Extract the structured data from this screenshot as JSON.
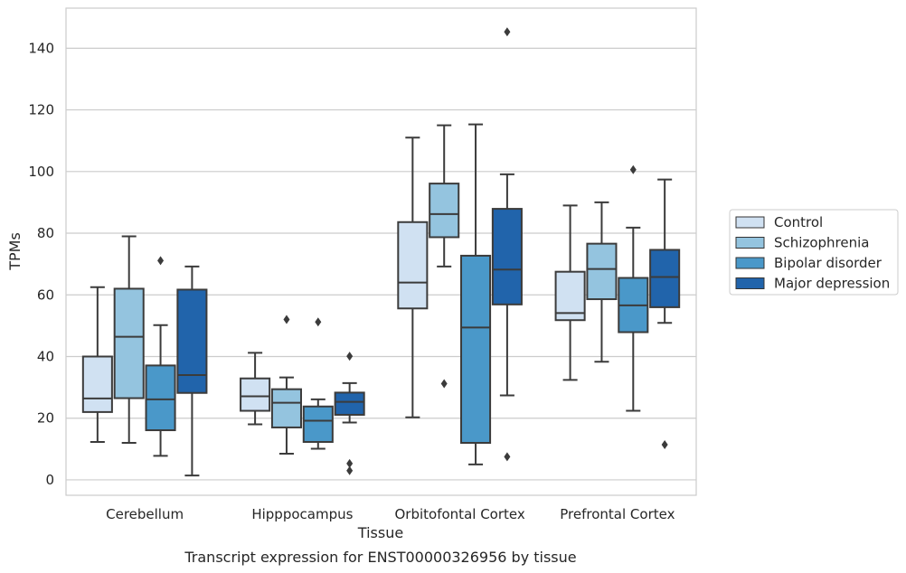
{
  "chart_data": {
    "type": "box",
    "title": "",
    "caption": "Transcript expression for ENST00000326956 by tissue",
    "xlabel": "Tissue",
    "ylabel": "TPMs",
    "ylim": [
      -5,
      153
    ],
    "yticks": [
      0,
      20,
      40,
      60,
      80,
      100,
      120,
      140
    ],
    "grid": true,
    "legend_position": "right",
    "categories": [
      "Cerebellum",
      "Hipppocampus",
      "Orbitofontal Cortex",
      "Prefrontal Cortex"
    ],
    "series": [
      {
        "name": "Control",
        "color": "#d0e1f2",
        "boxes": [
          {
            "low": 12.3,
            "q1": 22,
            "median": 26.4,
            "q3": 40,
            "high": 62.5,
            "outliers": []
          },
          {
            "low": 18,
            "q1": 22.4,
            "median": 27.1,
            "q3": 32.9,
            "high": 41.2,
            "outliers": []
          },
          {
            "low": 20.3,
            "q1": 55.6,
            "median": 64,
            "q3": 83.6,
            "high": 111,
            "outliers": []
          },
          {
            "low": 32.4,
            "q1": 51.8,
            "median": 54.1,
            "q3": 67.5,
            "high": 89,
            "outliers": []
          }
        ]
      },
      {
        "name": "Schizophrenia",
        "color": "#94c4df",
        "boxes": [
          {
            "low": 12,
            "q1": 26.5,
            "median": 46.4,
            "q3": 62,
            "high": 79,
            "outliers": []
          },
          {
            "low": 8.5,
            "q1": 17,
            "median": 25,
            "q3": 29.4,
            "high": 33.2,
            "outliers": [
              52
            ]
          },
          {
            "low": 69.2,
            "q1": 78.7,
            "median": 86.2,
            "q3": 96.1,
            "high": 115,
            "outliers": [
              31.2
            ]
          },
          {
            "low": 38.3,
            "q1": 58.6,
            "median": 68.4,
            "q3": 76.6,
            "high": 90,
            "outliers": []
          }
        ]
      },
      {
        "name": "Bipolar disorder",
        "color": "#4a98c9",
        "boxes": [
          {
            "low": 7.8,
            "q1": 16.1,
            "median": 26.1,
            "q3": 37.1,
            "high": 50.2,
            "outliers": [
              71.1
            ]
          },
          {
            "low": 10.1,
            "q1": 12.3,
            "median": 19.2,
            "q3": 23.8,
            "high": 26.1,
            "outliers": [
              51.2
            ]
          },
          {
            "low": 5,
            "q1": 12,
            "median": 49.4,
            "q3": 72.7,
            "high": 115.3,
            "outliers": []
          },
          {
            "low": 22.4,
            "q1": 47.9,
            "median": 56.6,
            "q3": 65.5,
            "high": 81.8,
            "outliers": [
              100.6
            ]
          }
        ]
      },
      {
        "name": "Major depression",
        "color": "#2164ab",
        "boxes": [
          {
            "low": 1.4,
            "q1": 28.2,
            "median": 34,
            "q3": 61.7,
            "high": 69.2,
            "outliers": []
          },
          {
            "low": 18.6,
            "q1": 21.1,
            "median": 25.3,
            "q3": 28.3,
            "high": 31.4,
            "outliers": [
              40.1,
              5.3,
              3
            ]
          },
          {
            "low": 27.4,
            "q1": 56.9,
            "median": 68.2,
            "q3": 87.9,
            "high": 99.1,
            "outliers": [
              145.3,
              7.5
            ]
          },
          {
            "low": 50.9,
            "q1": 56,
            "median": 65.8,
            "q3": 74.6,
            "high": 97.4,
            "outliers": [
              11.4
            ]
          }
        ]
      }
    ]
  }
}
